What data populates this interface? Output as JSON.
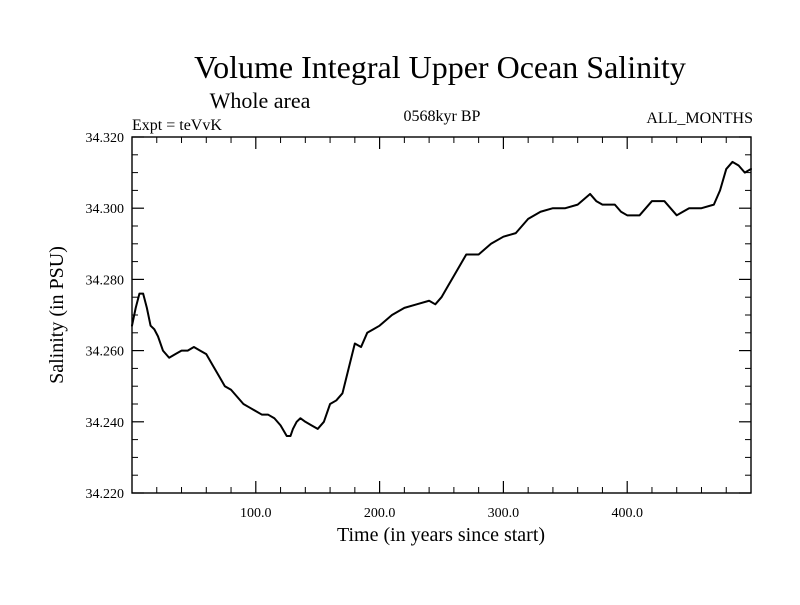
{
  "chart_data": {
    "type": "line",
    "title": "Volume Integral Upper Ocean Salinity",
    "subtitle": "Whole area",
    "experiment": "Expt = teVvK",
    "period": "0568kyr BP",
    "months": "ALL_MONTHS",
    "xlabel": "Time (in years since start)",
    "ylabel": "Salinity (in PSU)",
    "xlim": [
      0,
      500
    ],
    "ylim": [
      34.22,
      34.32
    ],
    "xticks": [
      100,
      200,
      300,
      400
    ],
    "xtick_labels": [
      "100.0",
      "200.0",
      "300.0",
      "400.0"
    ],
    "yticks": [
      34.22,
      34.24,
      34.26,
      34.28,
      34.3,
      34.32
    ],
    "ytick_labels": [
      "34.220",
      "34.240",
      "34.260",
      "34.280",
      "34.300",
      "34.320"
    ],
    "grid": false,
    "line_color": "#000000",
    "series": [
      {
        "x": [
          0,
          3,
          6,
          9,
          12,
          15,
          18,
          21,
          25,
          30,
          35,
          40,
          45,
          50,
          55,
          60,
          65,
          70,
          75,
          80,
          85,
          90,
          95,
          100,
          105,
          110,
          115,
          120,
          125,
          128,
          130,
          133,
          136,
          140,
          145,
          150,
          155,
          160,
          165,
          170,
          175,
          180,
          185,
          190,
          195,
          200,
          210,
          220,
          230,
          240,
          245,
          250,
          255,
          260,
          270,
          280,
          290,
          300,
          310,
          320,
          330,
          340,
          350,
          360,
          370,
          375,
          380,
          390,
          395,
          400,
          410,
          420,
          430,
          440,
          445,
          450,
          455,
          460,
          470,
          475,
          480,
          485,
          490,
          495,
          500
        ],
        "values": [
          34.267,
          34.272,
          34.276,
          34.276,
          34.272,
          34.267,
          34.266,
          34.264,
          34.26,
          34.258,
          34.259,
          34.26,
          34.26,
          34.261,
          34.26,
          34.259,
          34.256,
          34.253,
          34.25,
          34.249,
          34.247,
          34.245,
          34.244,
          34.243,
          34.242,
          34.242,
          34.241,
          34.239,
          34.236,
          34.236,
          34.238,
          34.24,
          34.241,
          34.24,
          34.239,
          34.238,
          34.24,
          34.245,
          34.246,
          34.248,
          34.255,
          34.262,
          34.261,
          34.265,
          34.266,
          34.267,
          34.27,
          34.272,
          34.273,
          34.274,
          34.273,
          34.275,
          34.278,
          34.281,
          34.287,
          34.287,
          34.29,
          34.292,
          34.293,
          34.297,
          34.299,
          34.3,
          34.3,
          34.301,
          34.304,
          34.302,
          34.301,
          34.301,
          34.299,
          34.298,
          34.298,
          34.302,
          34.302,
          34.298,
          34.299,
          34.3,
          34.3,
          34.3,
          34.301,
          34.305,
          34.311,
          34.313,
          34.312,
          34.31,
          34.311
        ]
      }
    ]
  }
}
